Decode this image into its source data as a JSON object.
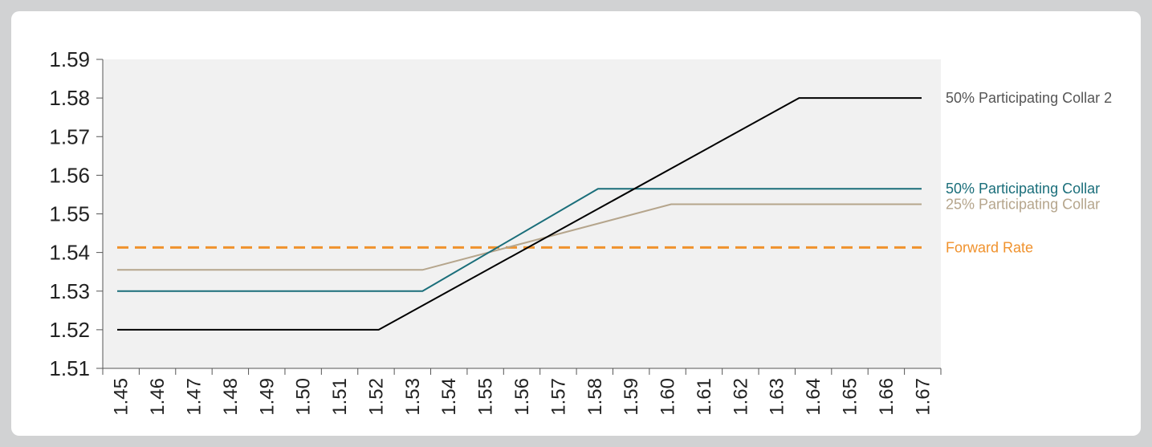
{
  "chart_data": {
    "type": "line",
    "title": "",
    "xlabel": "",
    "ylabel": "",
    "xlim": [
      1.45,
      1.67
    ],
    "ylim": [
      1.51,
      1.59
    ],
    "x_ticks": [
      "1.45",
      "1.46",
      "1.47",
      "1.48",
      "1.49",
      "1.50",
      "1.51",
      "1.52",
      "1.53",
      "1.54",
      "1.55",
      "1.56",
      "1.57",
      "1.58",
      "1.59",
      "1.60",
      "1.61",
      "1.62",
      "1.63",
      "1.64",
      "1.65",
      "1.66",
      "1.67"
    ],
    "y_ticks": [
      "1.51",
      "1.52",
      "1.53",
      "1.54",
      "1.55",
      "1.56",
      "1.57",
      "1.58",
      "1.59"
    ],
    "grid": false,
    "legend_placement": "right (labels at line ends)",
    "plot_background": "#f1f1f1",
    "series": [
      {
        "name": "50% Participating Collar 2",
        "color": "#000000",
        "label_color": "#555555",
        "dashed": false,
        "points": [
          [
            1.45,
            1.52
          ],
          [
            1.5215,
            1.52
          ],
          [
            1.6365,
            1.58
          ],
          [
            1.67,
            1.58
          ]
        ]
      },
      {
        "name": "50% Participating Collar",
        "color": "#1a6e7a",
        "label_color": "#1a6e7a",
        "dashed": false,
        "points": [
          [
            1.45,
            1.53
          ],
          [
            1.5335,
            1.53
          ],
          [
            1.5815,
            1.5565
          ],
          [
            1.67,
            1.5565
          ]
        ]
      },
      {
        "name": "25% Participating Collar",
        "color": "#b5a58c",
        "label_color": "#b5a58c",
        "dashed": false,
        "points": [
          [
            1.45,
            1.5355
          ],
          [
            1.5335,
            1.5355
          ],
          [
            1.6015,
            1.5525
          ],
          [
            1.67,
            1.5525
          ]
        ]
      },
      {
        "name": "Forward Rate",
        "color": "#f0922d",
        "label_color": "#f0922d",
        "dashed": true,
        "points": [
          [
            1.45,
            1.5413
          ],
          [
            1.67,
            1.5413
          ]
        ]
      }
    ]
  }
}
